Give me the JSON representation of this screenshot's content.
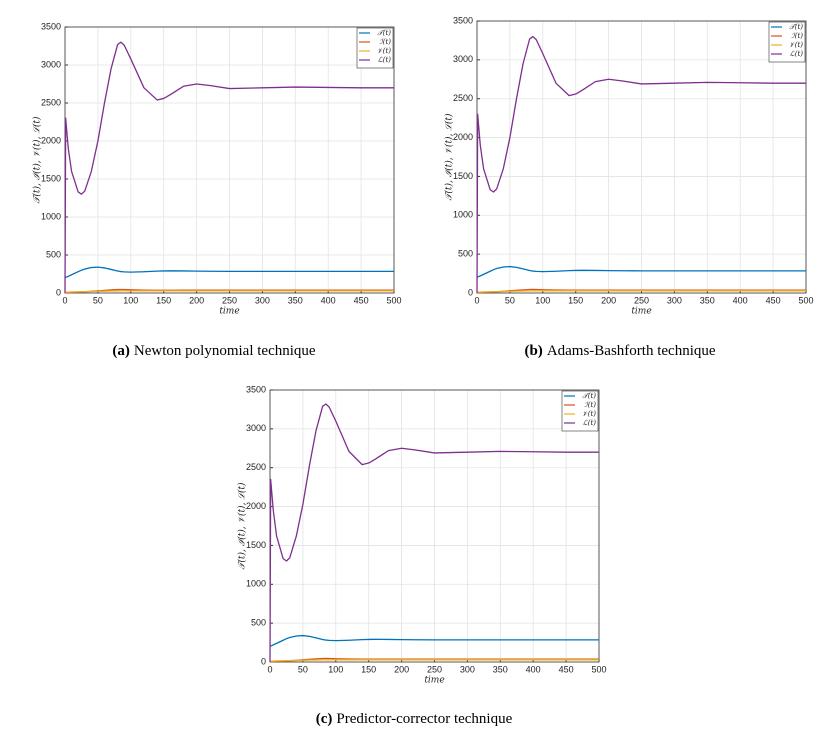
{
  "chart_data": [
    {
      "type": "line",
      "caption_label": "(a)",
      "caption": "Newton polynomial technique",
      "xlabel": "time",
      "ylabel": "𝒯(t), ℐ(t), 𝒱(t), ℒ(t)",
      "x": [
        0,
        1,
        5,
        10,
        20,
        25,
        30,
        40,
        50,
        60,
        70,
        80,
        85,
        90,
        100,
        120,
        140,
        150,
        160,
        180,
        200,
        220,
        250,
        300,
        350,
        400,
        450,
        500
      ],
      "series": [
        {
          "name": "𝒯(t)",
          "color": "#0072bd",
          "values": [
            200,
            205,
            220,
            240,
            280,
            300,
            315,
            335,
            340,
            330,
            310,
            290,
            282,
            278,
            275,
            280,
            288,
            290,
            292,
            290,
            288,
            286,
            285,
            285,
            285,
            285,
            285,
            285
          ]
        },
        {
          "name": "ℐ(t)",
          "color": "#d95319",
          "values": [
            0,
            2,
            5,
            8,
            12,
            14,
            16,
            22,
            28,
            35,
            40,
            45,
            46,
            45,
            42,
            38,
            36,
            36,
            36,
            37,
            37,
            37,
            37,
            37,
            37,
            37,
            37,
            37
          ]
        },
        {
          "name": "𝒱(t)",
          "color": "#edb120",
          "values": [
            10,
            10,
            12,
            14,
            16,
            17,
            18,
            20,
            22,
            24,
            26,
            27,
            28,
            28,
            28,
            28,
            28,
            28,
            28,
            28,
            28,
            28,
            28,
            28,
            28,
            28,
            28,
            28
          ]
        },
        {
          "name": "ℒ(t)",
          "color": "#7e2f8e",
          "values": [
            0,
            2300,
            1900,
            1600,
            1330,
            1300,
            1340,
            1600,
            2000,
            2500,
            2950,
            3270,
            3300,
            3260,
            3080,
            2700,
            2540,
            2560,
            2610,
            2720,
            2750,
            2730,
            2690,
            2700,
            2710,
            2705,
            2700,
            2700
          ]
        }
      ],
      "xlim": [
        0,
        500
      ],
      "xticks": [
        0,
        50,
        100,
        150,
        200,
        250,
        300,
        350,
        400,
        450,
        500
      ],
      "ylim": [
        0,
        3500
      ],
      "yticks": [
        0,
        500,
        1000,
        1500,
        2000,
        2500,
        3000,
        3500
      ],
      "grid": true,
      "legend": "upper right"
    },
    {
      "type": "line",
      "caption_label": "(b)",
      "caption": "Adams-Bashforth technique",
      "xlabel": "time",
      "ylabel": "𝒯(t), ℐ(t), 𝒱(t), ℒ(t)",
      "x": [
        0,
        1,
        5,
        10,
        20,
        25,
        30,
        40,
        50,
        60,
        70,
        80,
        85,
        90,
        100,
        120,
        140,
        150,
        160,
        180,
        200,
        220,
        250,
        300,
        350,
        400,
        450,
        500
      ],
      "series": [
        {
          "name": "𝒯(t)",
          "color": "#0072bd",
          "values": [
            200,
            205,
            220,
            240,
            280,
            300,
            315,
            335,
            340,
            330,
            310,
            290,
            282,
            278,
            275,
            280,
            288,
            290,
            292,
            290,
            288,
            286,
            285,
            285,
            285,
            285,
            285,
            285
          ]
        },
        {
          "name": "ℐ(t)",
          "color": "#d95319",
          "values": [
            0,
            2,
            5,
            8,
            12,
            14,
            16,
            22,
            28,
            35,
            40,
            45,
            46,
            45,
            42,
            38,
            36,
            36,
            36,
            37,
            37,
            37,
            37,
            37,
            37,
            37,
            37,
            37
          ]
        },
        {
          "name": "𝒱(t)",
          "color": "#edb120",
          "values": [
            10,
            10,
            12,
            14,
            16,
            17,
            18,
            20,
            22,
            24,
            26,
            27,
            28,
            28,
            28,
            28,
            28,
            28,
            28,
            28,
            28,
            28,
            28,
            28,
            28,
            28,
            28,
            28
          ]
        },
        {
          "name": "ℒ(t)",
          "color": "#7e2f8e",
          "values": [
            0,
            2300,
            1900,
            1600,
            1330,
            1300,
            1340,
            1600,
            2000,
            2500,
            2950,
            3270,
            3300,
            3260,
            3080,
            2700,
            2540,
            2560,
            2610,
            2720,
            2750,
            2730,
            2690,
            2700,
            2710,
            2705,
            2700,
            2700
          ]
        }
      ],
      "xlim": [
        0,
        500
      ],
      "xticks": [
        0,
        50,
        100,
        150,
        200,
        250,
        300,
        350,
        400,
        450,
        500
      ],
      "ylim": [
        0,
        3500
      ],
      "yticks": [
        0,
        500,
        1000,
        1500,
        2000,
        2500,
        3000,
        3500
      ],
      "grid": true,
      "legend": "upper right"
    },
    {
      "type": "line",
      "caption_label": "(c)",
      "caption": "Predictor-corrector technique",
      "xlabel": "time",
      "ylabel": "𝒯(t), ℐ(t), 𝒱(t), ℒ(t)",
      "x": [
        0,
        1,
        5,
        10,
        20,
        25,
        30,
        40,
        50,
        60,
        70,
        80,
        85,
        90,
        100,
        120,
        140,
        150,
        160,
        180,
        200,
        220,
        250,
        300,
        350,
        400,
        450,
        500
      ],
      "series": [
        {
          "name": "𝒯(t)",
          "color": "#0072bd",
          "values": [
            200,
            205,
            220,
            240,
            280,
            300,
            315,
            335,
            340,
            330,
            310,
            290,
            282,
            278,
            275,
            280,
            288,
            290,
            292,
            290,
            288,
            286,
            285,
            285,
            285,
            285,
            285,
            285
          ]
        },
        {
          "name": "ℐ(t)",
          "color": "#d95319",
          "values": [
            0,
            2,
            5,
            8,
            12,
            14,
            16,
            22,
            28,
            35,
            40,
            45,
            46,
            45,
            42,
            38,
            36,
            36,
            36,
            37,
            37,
            37,
            37,
            37,
            37,
            37,
            37,
            37
          ]
        },
        {
          "name": "𝒱(t)",
          "color": "#edb120",
          "values": [
            10,
            10,
            12,
            14,
            16,
            17,
            18,
            20,
            22,
            24,
            26,
            27,
            28,
            28,
            28,
            28,
            28,
            28,
            28,
            28,
            28,
            28,
            28,
            28,
            28,
            28,
            28,
            28
          ]
        },
        {
          "name": "ℒ(t)",
          "color": "#7e2f8e",
          "values": [
            0,
            2350,
            1950,
            1620,
            1330,
            1300,
            1340,
            1620,
            2030,
            2530,
            2980,
            3290,
            3320,
            3280,
            3100,
            2710,
            2540,
            2560,
            2610,
            2720,
            2750,
            2730,
            2690,
            2700,
            2710,
            2705,
            2700,
            2700
          ]
        }
      ],
      "xlim": [
        0,
        500
      ],
      "xticks": [
        0,
        50,
        100,
        150,
        200,
        250,
        300,
        350,
        400,
        450,
        500
      ],
      "ylim": [
        0,
        3500
      ],
      "yticks": [
        0,
        500,
        1000,
        1500,
        2000,
        2500,
        3000,
        3500
      ],
      "grid": true,
      "legend": "upper right"
    }
  ]
}
